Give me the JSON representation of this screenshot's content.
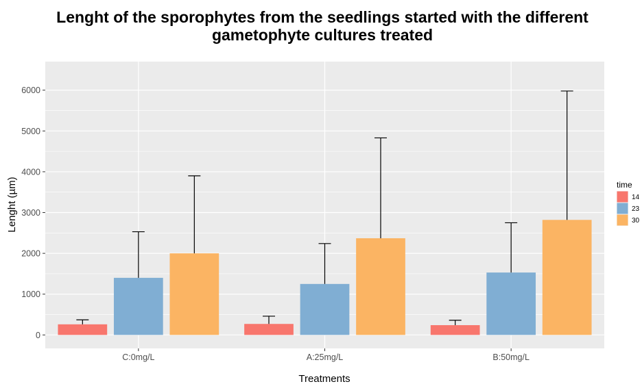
{
  "chart_data": {
    "type": "bar",
    "title_lines": [
      "Lenght of the sporophytes from the seedlings started with the different",
      "gametophyte cultures treated"
    ],
    "xlabel": "Treatments",
    "ylabel": "Lenght (µm)",
    "categories": [
      "C:0mg/L",
      "A:25mg/L",
      "B:50mg/L"
    ],
    "ylim": [
      -330,
      6700
    ],
    "yticks": [
      0,
      1000,
      2000,
      3000,
      4000,
      5000,
      6000
    ],
    "grid": true,
    "legend": {
      "title": "time",
      "position": "right"
    },
    "series": [
      {
        "name": "14",
        "color": "#F8766D",
        "values": [
          260,
          270,
          240
        ],
        "error_upper": [
          370,
          460,
          360
        ]
      },
      {
        "name": "23",
        "color": "#80AED3",
        "values": [
          1400,
          1250,
          1530
        ],
        "error_upper": [
          2530,
          2240,
          2750
        ]
      },
      {
        "name": "30",
        "color": "#FBB463",
        "values": [
          2000,
          2370,
          2820
        ],
        "error_upper": [
          3900,
          4830,
          5980
        ]
      }
    ],
    "colors": {
      "panel_background": "#EBEBEB",
      "grid_major": "#FFFFFF",
      "error_bar": "#000000"
    }
  }
}
